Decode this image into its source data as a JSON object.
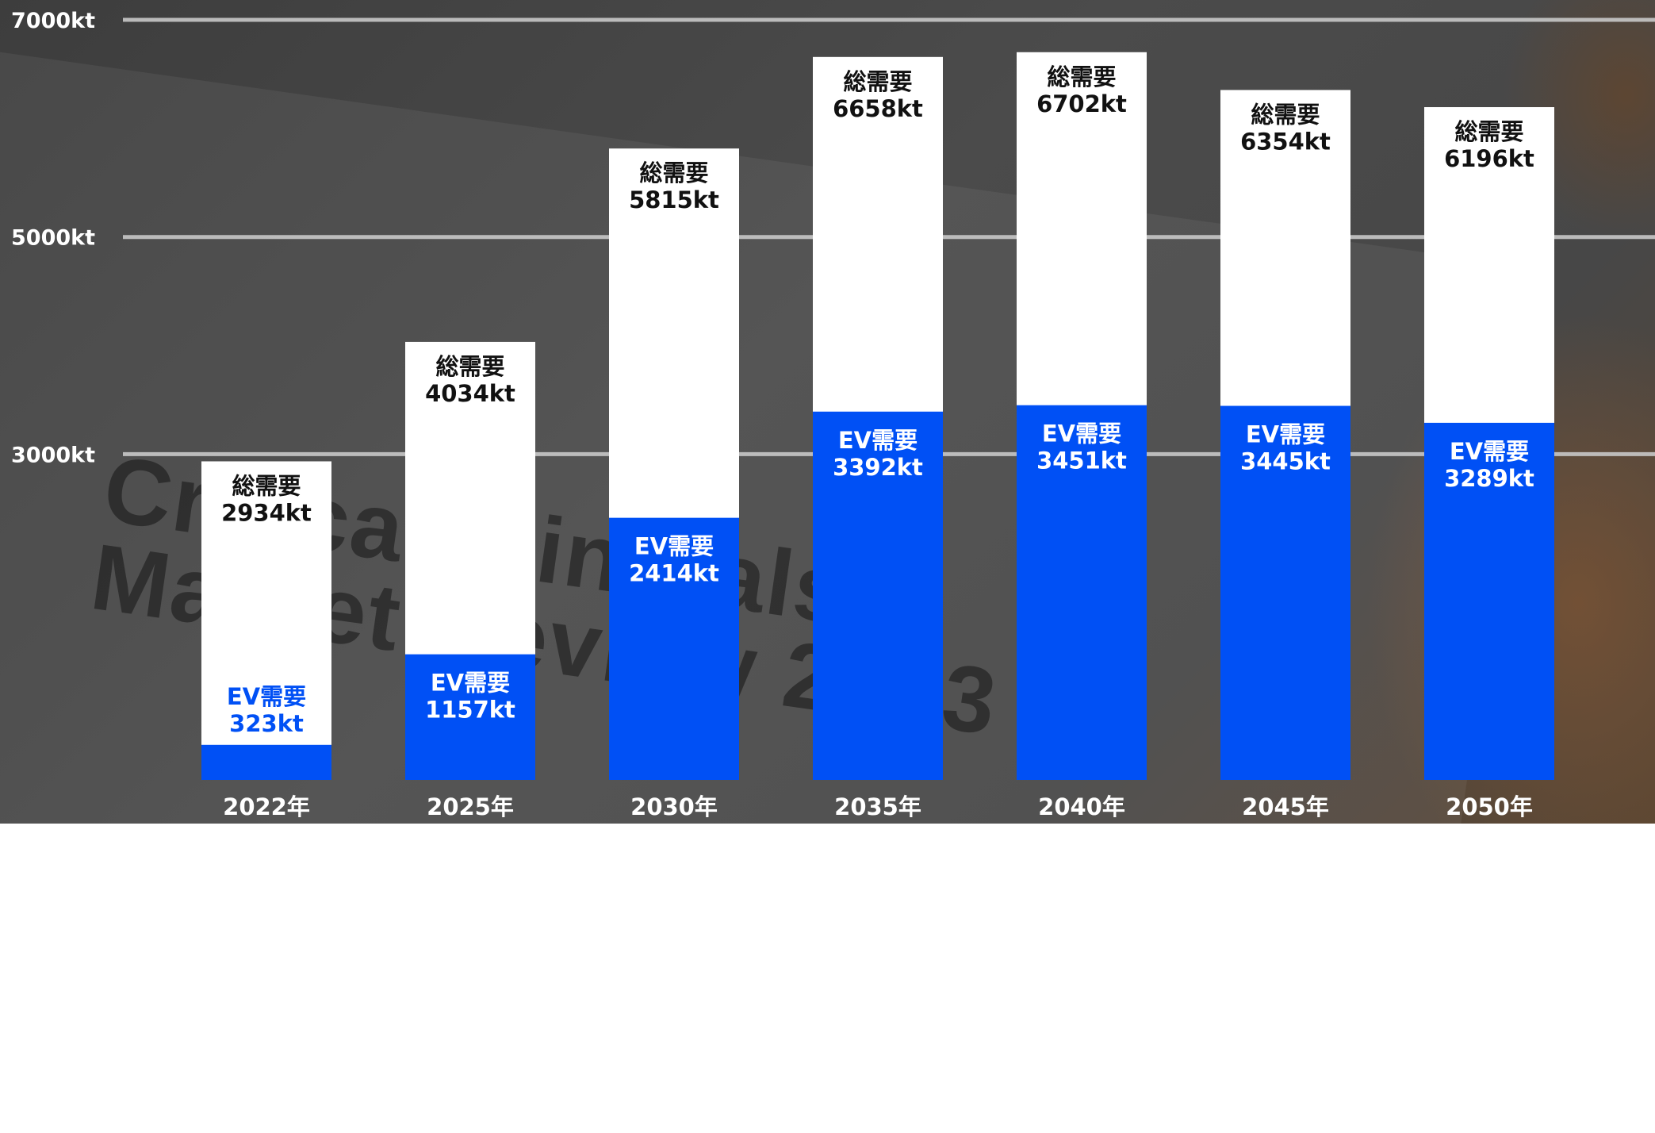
{
  "chart_data": {
    "type": "bar",
    "categories": [
      "2022年",
      "2025年",
      "2030年",
      "2035年",
      "2040年",
      "2045年",
      "2050年"
    ],
    "series": [
      {
        "name": "総需要",
        "values": [
          2934,
          4034,
          5815,
          6658,
          6702,
          6354,
          6196
        ]
      },
      {
        "name": "EV需要",
        "values": [
          323,
          1157,
          2414,
          3392,
          3451,
          3445,
          3289
        ]
      }
    ],
    "unit": "kt",
    "yticks": [
      "3000kt",
      "5000kt",
      "7000kt"
    ],
    "ytick_values": [
      3000,
      5000,
      7000
    ],
    "ylim": [
      0,
      7000
    ],
    "title": "",
    "xlabel": "",
    "ylabel": "",
    "grid": true,
    "bar_labels": {
      "total": [
        "総需要",
        "総需要",
        "総需要",
        "総需要",
        "総需要",
        "総需要",
        "総需要"
      ],
      "total_values": [
        "2934kt",
        "4034kt",
        "5815kt",
        "6658kt",
        "6702kt",
        "6354kt",
        "6196kt"
      ],
      "ev": [
        "EV需要",
        "EV需要",
        "EV需要",
        "EV需要",
        "EV需要",
        "EV需要",
        "EV需要"
      ],
      "ev_values": [
        "323kt",
        "1157kt",
        "2414kt",
        "3392kt",
        "3451kt",
        "3445kt",
        "3289kt"
      ]
    },
    "colors": {
      "total": "#ffffff",
      "ev": "#0050f5",
      "grid": "#c8c8c8",
      "label_dark": "#111111",
      "label_light": "#ffffff",
      "axis_text": "#ffffff"
    }
  },
  "background": {
    "watermark_text": "Critical Minerals\nMarket Review 2023"
  }
}
